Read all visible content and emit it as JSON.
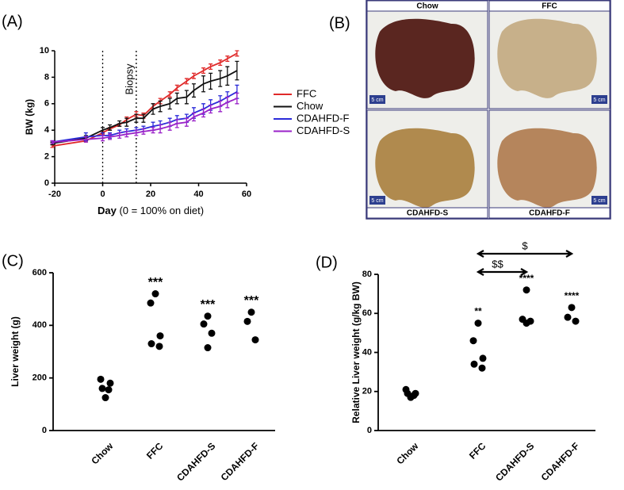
{
  "chart_data": [
    {
      "type": "line",
      "panel_label": "(A)",
      "xlabel": "Day",
      "xlabel_note": "(0 = 100% on diet)",
      "ylabel": "BW (kg)",
      "x": [
        -21,
        -7,
        0,
        3,
        7,
        10,
        14,
        17,
        21,
        24,
        28,
        31,
        35,
        38,
        42,
        45,
        49,
        52,
        56
      ],
      "xlim": [
        -20,
        60
      ],
      "xticks": [
        -20,
        0,
        20,
        40,
        60
      ],
      "ylim": [
        0,
        10
      ],
      "yticks": [
        0,
        2,
        4,
        6,
        8,
        10
      ],
      "vlines": [
        0,
        14
      ],
      "annotation": "Biopsy",
      "series": [
        {
          "name": "FFC",
          "color": "#e02a2a",
          "values": [
            2.8,
            3.2,
            3.8,
            4.1,
            4.4,
            4.8,
            5.2,
            5.1,
            5.8,
            6.2,
            6.7,
            7.2,
            7.7,
            8.1,
            8.5,
            8.8,
            9.1,
            9.4,
            9.8
          ],
          "errors": [
            0.1,
            0.1,
            0.1,
            0.1,
            0.1,
            0.2,
            0.2,
            0.2,
            0.2,
            0.2,
            0.2,
            0.2,
            0.2,
            0.2,
            0.2,
            0.2,
            0.2,
            0.2,
            0.2
          ]
        },
        {
          "name": "Chow",
          "color": "#111111",
          "values": [
            3.0,
            3.4,
            4.0,
            4.2,
            4.5,
            4.6,
            4.9,
            4.9,
            5.6,
            5.8,
            6.0,
            6.4,
            6.5,
            7.0,
            7.5,
            7.7,
            7.9,
            8.1,
            8.5
          ],
          "errors": [
            0.1,
            0.2,
            0.2,
            0.2,
            0.2,
            0.3,
            0.3,
            0.3,
            0.4,
            0.4,
            0.4,
            0.4,
            0.5,
            0.5,
            0.6,
            0.6,
            0.6,
            0.7,
            0.7
          ]
        },
        {
          "name": "CDAHFD-F",
          "color": "#2b2bd9",
          "values": [
            3.1,
            3.5,
            3.6,
            3.6,
            3.8,
            3.9,
            4.0,
            4.1,
            4.3,
            4.4,
            4.6,
            4.8,
            4.9,
            5.3,
            5.6,
            5.9,
            6.2,
            6.5,
            6.9
          ],
          "errors": [
            0.1,
            0.3,
            0.2,
            0.2,
            0.2,
            0.2,
            0.2,
            0.2,
            0.3,
            0.3,
            0.3,
            0.3,
            0.3,
            0.4,
            0.4,
            0.4,
            0.4,
            0.4,
            0.5
          ]
        },
        {
          "name": "CDAHFD-S",
          "color": "#9a22c8",
          "values": [
            3.1,
            3.3,
            3.4,
            3.5,
            3.6,
            3.7,
            3.8,
            3.9,
            4.0,
            4.1,
            4.3,
            4.5,
            4.6,
            5.0,
            5.3,
            5.6,
            5.8,
            6.1,
            6.4
          ],
          "errors": [
            0.1,
            0.2,
            0.2,
            0.2,
            0.2,
            0.2,
            0.2,
            0.2,
            0.2,
            0.3,
            0.3,
            0.3,
            0.3,
            0.3,
            0.3,
            0.3,
            0.4,
            0.4,
            0.4
          ]
        }
      ]
    },
    {
      "type": "strip",
      "panel_label": "(C)",
      "ylabel": "Liver weight (g)",
      "categories": [
        "Chow",
        "FFC",
        "CDAHFD-S",
        "CDAHFD-F"
      ],
      "values": [
        [
          195,
          180,
          160,
          155,
          125
        ],
        [
          520,
          485,
          360,
          330,
          320
        ],
        [
          435,
          405,
          370,
          315
        ],
        [
          450,
          415,
          345
        ]
      ],
      "value_annotations": [
        null,
        "***",
        "***",
        "***"
      ],
      "ylim": [
        0,
        600
      ],
      "yticks": [
        0,
        200,
        400,
        600
      ]
    },
    {
      "type": "strip",
      "panel_label": "(D)",
      "ylabel": "Relative Liver weight (g/kg BW)",
      "categories": [
        "Chow",
        "FFC",
        "CDAHFD-S",
        "CDAHFD-F"
      ],
      "values": [
        [
          21,
          19,
          19,
          18,
          17
        ],
        [
          55,
          46,
          37,
          34,
          32
        ],
        [
          72,
          57,
          56,
          55
        ],
        [
          63,
          58,
          56
        ]
      ],
      "value_annotations": [
        null,
        "**",
        "****",
        "****"
      ],
      "comparisons": [
        "$$",
        "$"
      ],
      "ylim": [
        0,
        80
      ],
      "yticks": [
        0,
        20,
        40,
        60,
        80
      ]
    }
  ],
  "photo_panel": {
    "panel_label": "(B)",
    "photos": [
      {
        "title": "Chow",
        "scale": "5 cm"
      },
      {
        "title": "FFC",
        "scale": "5 cm"
      },
      {
        "title": "CDAHFD-S",
        "scale": "5 cm"
      },
      {
        "title": "CDAHFD-F",
        "scale": "5 cm"
      }
    ]
  }
}
